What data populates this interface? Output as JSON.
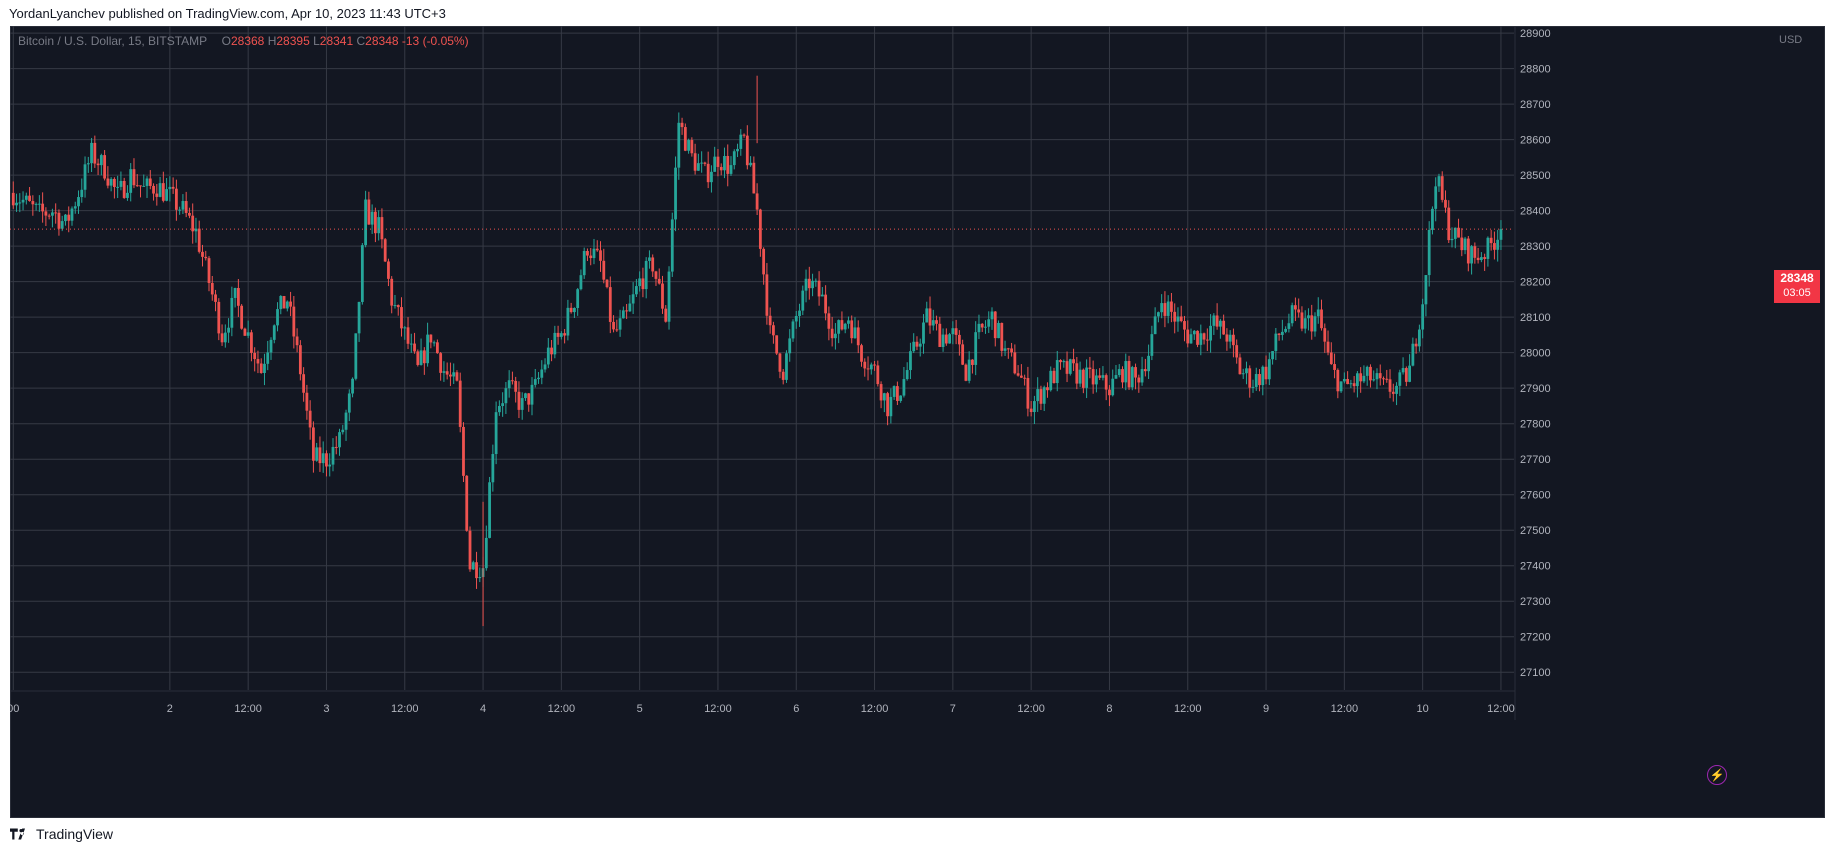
{
  "header": {
    "published_text": "YordanLyanchev published on TradingView.com, Apr 10, 2023 11:43 UTC+3"
  },
  "legend": {
    "symbol": "Bitcoin / U.S. Dollar, 15, BITSTAMP",
    "open_label": "O",
    "open": "28368",
    "high_label": "H",
    "high": "28395",
    "low_label": "L",
    "low": "28341",
    "close_label": "C",
    "close": "28348",
    "change": "-13 (-0.05%)"
  },
  "price_scale": {
    "currency": "USD",
    "current_price": "28348",
    "countdown": "03:05"
  },
  "footer": {
    "brand": "TradingView"
  },
  "colors": {
    "background": "#131722",
    "grid": "#363a45",
    "up": "#26a69a",
    "down": "#ef5350",
    "text": "#b2b5be",
    "price_line": "#ef5350"
  },
  "chart_data": {
    "type": "candlestick",
    "interval": "15",
    "ylim": [
      27050,
      28920
    ],
    "y_ticks": [
      27100,
      27200,
      27300,
      27400,
      27500,
      27600,
      27700,
      27800,
      27900,
      28000,
      28100,
      28200,
      28300,
      28400,
      28500,
      28600,
      28700,
      28800,
      28900
    ],
    "x_ticks": [
      "00",
      "2",
      "12:00",
      "3",
      "12:00",
      "4",
      "12:00",
      "5",
      "12:00",
      "6",
      "12:00",
      "7",
      "12:00",
      "8",
      "12:00",
      "9",
      "12:00",
      "10",
      "12:00"
    ],
    "x_tick_hours": [
      0,
      24,
      36,
      48,
      60,
      72,
      84,
      96,
      108,
      120,
      132,
      144,
      156,
      168,
      180,
      192,
      204,
      216,
      228
    ],
    "last_price": 28348,
    "close_path": [
      [
        0,
        28450
      ],
      [
        2,
        28420
      ],
      [
        4,
        28390
      ],
      [
        6,
        28400
      ],
      [
        8,
        28360
      ],
      [
        10,
        28450
      ],
      [
        12,
        28560
      ],
      [
        14,
        28520
      ],
      [
        16,
        28440
      ],
      [
        18,
        28500
      ],
      [
        20,
        28460
      ],
      [
        22,
        28470
      ],
      [
        24,
        28440
      ],
      [
        26,
        28400
      ],
      [
        28,
        28340
      ],
      [
        30,
        28200
      ],
      [
        32,
        28050
      ],
      [
        34,
        28150
      ],
      [
        36,
        28050
      ],
      [
        38,
        27950
      ],
      [
        40,
        28100
      ],
      [
        42,
        28150
      ],
      [
        44,
        27950
      ],
      [
        46,
        27700
      ],
      [
        48,
        27700
      ],
      [
        50,
        27750
      ],
      [
        52,
        27900
      ],
      [
        54,
        28400
      ],
      [
        56,
        28350
      ],
      [
        58,
        28150
      ],
      [
        60,
        28050
      ],
      [
        62,
        27950
      ],
      [
        64,
        28050
      ],
      [
        66,
        27950
      ],
      [
        68,
        27900
      ],
      [
        70,
        27400
      ],
      [
        72,
        27400
      ],
      [
        74,
        27850
      ],
      [
        76,
        27900
      ],
      [
        78,
        27850
      ],
      [
        80,
        27900
      ],
      [
        82,
        28000
      ],
      [
        84,
        28050
      ],
      [
        86,
        28150
      ],
      [
        88,
        28300
      ],
      [
        90,
        28250
      ],
      [
        92,
        28050
      ],
      [
        94,
        28100
      ],
      [
        96,
        28200
      ],
      [
        98,
        28250
      ],
      [
        100,
        28100
      ],
      [
        102,
        28650
      ],
      [
        104,
        28550
      ],
      [
        106,
        28500
      ],
      [
        108,
        28550
      ],
      [
        110,
        28520
      ],
      [
        112,
        28600
      ],
      [
        114,
        28400
      ],
      [
        116,
        28050
      ],
      [
        118,
        27950
      ],
      [
        120,
        28100
      ],
      [
        122,
        28200
      ],
      [
        124,
        28150
      ],
      [
        126,
        28050
      ],
      [
        128,
        28100
      ],
      [
        130,
        28000
      ],
      [
        132,
        27950
      ],
      [
        134,
        27850
      ],
      [
        136,
        27900
      ],
      [
        138,
        28000
      ],
      [
        140,
        28100
      ],
      [
        142,
        28050
      ],
      [
        144,
        28050
      ],
      [
        146,
        27950
      ],
      [
        148,
        28050
      ],
      [
        150,
        28100
      ],
      [
        152,
        28000
      ],
      [
        154,
        27950
      ],
      [
        156,
        27850
      ],
      [
        158,
        27900
      ],
      [
        160,
        27950
      ],
      [
        162,
        27950
      ],
      [
        164,
        27930
      ],
      [
        166,
        27920
      ],
      [
        168,
        27900
      ],
      [
        170,
        27950
      ],
      [
        172,
        27920
      ],
      [
        174,
        28000
      ],
      [
        176,
        28150
      ],
      [
        178,
        28100
      ],
      [
        180,
        28050
      ],
      [
        182,
        28050
      ],
      [
        184,
        28080
      ],
      [
        186,
        28050
      ],
      [
        188,
        27950
      ],
      [
        190,
        27920
      ],
      [
        192,
        27950
      ],
      [
        194,
        28050
      ],
      [
        196,
        28100
      ],
      [
        198,
        28080
      ],
      [
        200,
        28100
      ],
      [
        202,
        27950
      ],
      [
        204,
        27900
      ],
      [
        206,
        27920
      ],
      [
        208,
        27930
      ],
      [
        210,
        27900
      ],
      [
        212,
        27900
      ],
      [
        214,
        27950
      ],
      [
        216,
        28150
      ],
      [
        218,
        28500
      ],
      [
        220,
        28350
      ],
      [
        222,
        28300
      ],
      [
        224,
        28270
      ],
      [
        226,
        28290
      ],
      [
        228,
        28348
      ]
    ]
  }
}
